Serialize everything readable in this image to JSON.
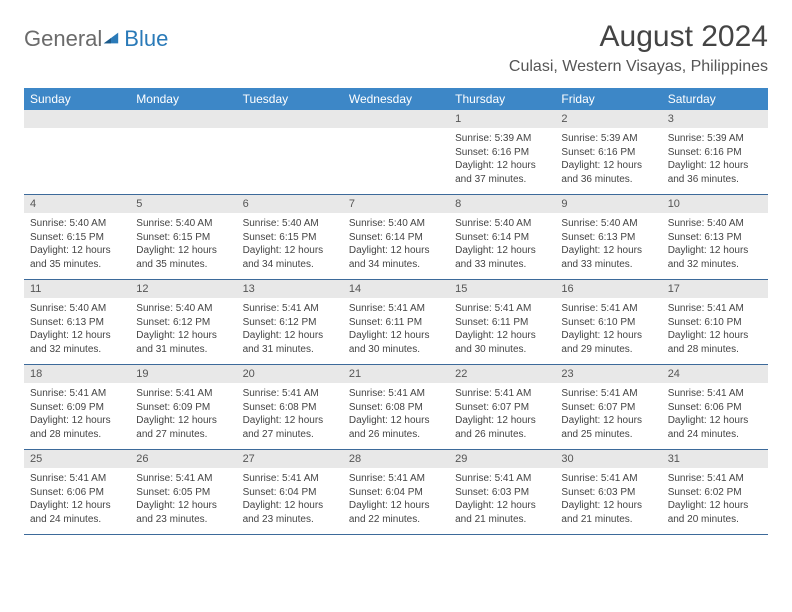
{
  "logo": {
    "general": "General",
    "blue": "Blue"
  },
  "title": "August 2024",
  "location": "Culasi, Western Visayas, Philippines",
  "colors": {
    "header_bg": "#3d87c7",
    "header_text": "#ffffff",
    "daynum_bg": "#e8e8e8",
    "divider": "#3d6a9a",
    "text": "#444444",
    "logo_gray": "#6b6b6b",
    "logo_blue": "#2a7ab8"
  },
  "typography": {
    "title_fontsize": 30,
    "location_fontsize": 16,
    "dayheader_fontsize": 12,
    "daynum_fontsize": 11,
    "detail_fontsize": 10
  },
  "day_headers": [
    "Sunday",
    "Monday",
    "Tuesday",
    "Wednesday",
    "Thursday",
    "Friday",
    "Saturday"
  ],
  "weeks": [
    [
      null,
      null,
      null,
      null,
      {
        "n": "1",
        "sunrise": "5:39 AM",
        "sunset": "6:16 PM",
        "daylight": "12 hours and 37 minutes."
      },
      {
        "n": "2",
        "sunrise": "5:39 AM",
        "sunset": "6:16 PM",
        "daylight": "12 hours and 36 minutes."
      },
      {
        "n": "3",
        "sunrise": "5:39 AM",
        "sunset": "6:16 PM",
        "daylight": "12 hours and 36 minutes."
      }
    ],
    [
      {
        "n": "4",
        "sunrise": "5:40 AM",
        "sunset": "6:15 PM",
        "daylight": "12 hours and 35 minutes."
      },
      {
        "n": "5",
        "sunrise": "5:40 AM",
        "sunset": "6:15 PM",
        "daylight": "12 hours and 35 minutes."
      },
      {
        "n": "6",
        "sunrise": "5:40 AM",
        "sunset": "6:15 PM",
        "daylight": "12 hours and 34 minutes."
      },
      {
        "n": "7",
        "sunrise": "5:40 AM",
        "sunset": "6:14 PM",
        "daylight": "12 hours and 34 minutes."
      },
      {
        "n": "8",
        "sunrise": "5:40 AM",
        "sunset": "6:14 PM",
        "daylight": "12 hours and 33 minutes."
      },
      {
        "n": "9",
        "sunrise": "5:40 AM",
        "sunset": "6:13 PM",
        "daylight": "12 hours and 33 minutes."
      },
      {
        "n": "10",
        "sunrise": "5:40 AM",
        "sunset": "6:13 PM",
        "daylight": "12 hours and 32 minutes."
      }
    ],
    [
      {
        "n": "11",
        "sunrise": "5:40 AM",
        "sunset": "6:13 PM",
        "daylight": "12 hours and 32 minutes."
      },
      {
        "n": "12",
        "sunrise": "5:40 AM",
        "sunset": "6:12 PM",
        "daylight": "12 hours and 31 minutes."
      },
      {
        "n": "13",
        "sunrise": "5:41 AM",
        "sunset": "6:12 PM",
        "daylight": "12 hours and 31 minutes."
      },
      {
        "n": "14",
        "sunrise": "5:41 AM",
        "sunset": "6:11 PM",
        "daylight": "12 hours and 30 minutes."
      },
      {
        "n": "15",
        "sunrise": "5:41 AM",
        "sunset": "6:11 PM",
        "daylight": "12 hours and 30 minutes."
      },
      {
        "n": "16",
        "sunrise": "5:41 AM",
        "sunset": "6:10 PM",
        "daylight": "12 hours and 29 minutes."
      },
      {
        "n": "17",
        "sunrise": "5:41 AM",
        "sunset": "6:10 PM",
        "daylight": "12 hours and 28 minutes."
      }
    ],
    [
      {
        "n": "18",
        "sunrise": "5:41 AM",
        "sunset": "6:09 PM",
        "daylight": "12 hours and 28 minutes."
      },
      {
        "n": "19",
        "sunrise": "5:41 AM",
        "sunset": "6:09 PM",
        "daylight": "12 hours and 27 minutes."
      },
      {
        "n": "20",
        "sunrise": "5:41 AM",
        "sunset": "6:08 PM",
        "daylight": "12 hours and 27 minutes."
      },
      {
        "n": "21",
        "sunrise": "5:41 AM",
        "sunset": "6:08 PM",
        "daylight": "12 hours and 26 minutes."
      },
      {
        "n": "22",
        "sunrise": "5:41 AM",
        "sunset": "6:07 PM",
        "daylight": "12 hours and 26 minutes."
      },
      {
        "n": "23",
        "sunrise": "5:41 AM",
        "sunset": "6:07 PM",
        "daylight": "12 hours and 25 minutes."
      },
      {
        "n": "24",
        "sunrise": "5:41 AM",
        "sunset": "6:06 PM",
        "daylight": "12 hours and 24 minutes."
      }
    ],
    [
      {
        "n": "25",
        "sunrise": "5:41 AM",
        "sunset": "6:06 PM",
        "daylight": "12 hours and 24 minutes."
      },
      {
        "n": "26",
        "sunrise": "5:41 AM",
        "sunset": "6:05 PM",
        "daylight": "12 hours and 23 minutes."
      },
      {
        "n": "27",
        "sunrise": "5:41 AM",
        "sunset": "6:04 PM",
        "daylight": "12 hours and 23 minutes."
      },
      {
        "n": "28",
        "sunrise": "5:41 AM",
        "sunset": "6:04 PM",
        "daylight": "12 hours and 22 minutes."
      },
      {
        "n": "29",
        "sunrise": "5:41 AM",
        "sunset": "6:03 PM",
        "daylight": "12 hours and 21 minutes."
      },
      {
        "n": "30",
        "sunrise": "5:41 AM",
        "sunset": "6:03 PM",
        "daylight": "12 hours and 21 minutes."
      },
      {
        "n": "31",
        "sunrise": "5:41 AM",
        "sunset": "6:02 PM",
        "daylight": "12 hours and 20 minutes."
      }
    ]
  ],
  "labels": {
    "sunrise": "Sunrise:",
    "sunset": "Sunset:",
    "daylight": "Daylight:"
  }
}
